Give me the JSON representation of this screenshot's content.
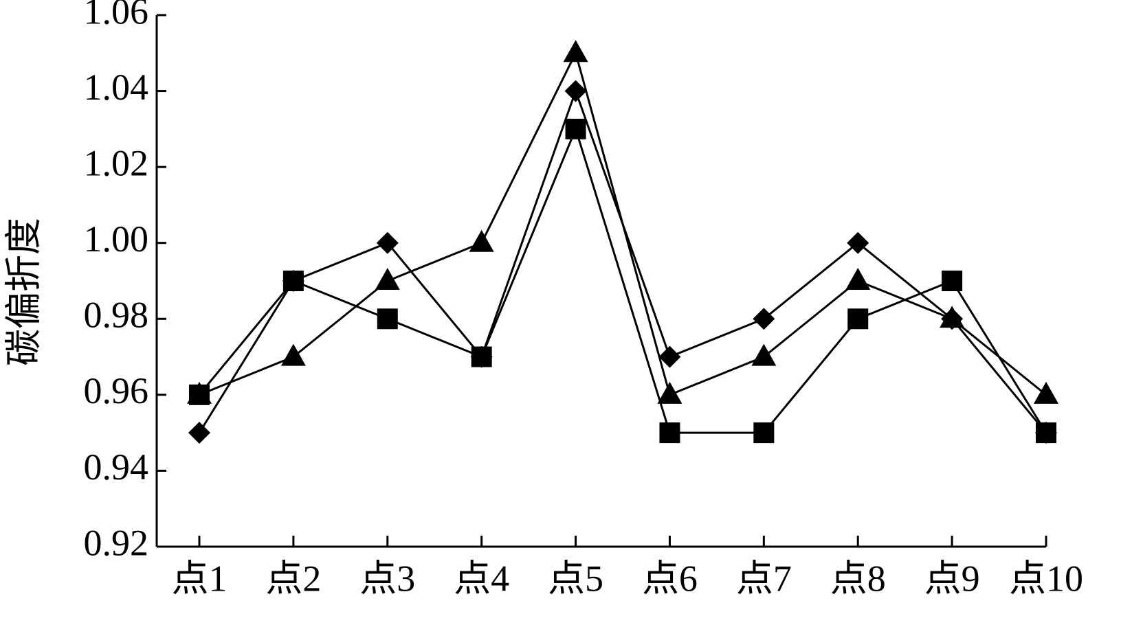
{
  "chart_data": {
    "type": "line",
    "y_label": "碳偏折度",
    "categories": [
      "点1",
      "点2",
      "点3",
      "点4",
      "点5",
      "点6",
      "点7",
      "点8",
      "点9",
      "点10"
    ],
    "ylim": [
      0.92,
      1.06
    ],
    "yticks": [
      0.92,
      0.94,
      0.96,
      0.98,
      {
        "value": 1,
        "label": "1.00"
      },
      1.02,
      1.04,
      1.06
    ],
    "grid": false,
    "series": [
      {
        "marker": "diamond",
        "color": "#000000",
        "values": [
          0.95,
          0.99,
          1,
          0.97,
          1.04,
          0.97,
          0.98,
          1,
          0.98,
          0.95
        ]
      },
      {
        "marker": "triangle",
        "color": "#000000",
        "values": [
          0.96,
          0.97,
          0.99,
          1,
          1.05,
          0.96,
          0.97,
          0.99,
          0.98,
          0.96
        ]
      },
      {
        "marker": "square",
        "color": "#000000",
        "values": [
          0.96,
          0.99,
          0.98,
          0.97,
          1.03,
          0.95,
          0.95,
          0.98,
          0.99,
          0.95
        ]
      }
    ]
  }
}
